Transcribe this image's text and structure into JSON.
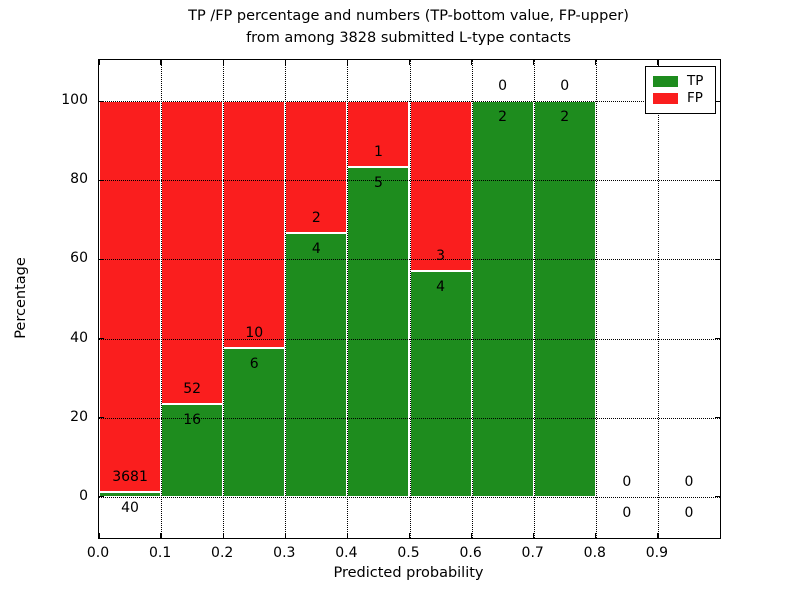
{
  "chart_data": {
    "type": "bar",
    "stacked": true,
    "title_line1": "TP /FP percentage and numbers (TP-bottom value, FP-upper)",
    "title_line2": "from among 3828 submitted L-type contacts",
    "xlabel": "Predicted probability",
    "ylabel": "Percentage",
    "x_ticks": [
      "0.0",
      "0.1",
      "0.2",
      "0.3",
      "0.4",
      "0.5",
      "0.6",
      "0.7",
      "0.8",
      "0.9"
    ],
    "y_ticks": [
      "0",
      "20",
      "40",
      "60",
      "80",
      "100"
    ],
    "xlim": [
      0.0,
      1.0
    ],
    "ylim": [
      -10.5,
      110.5
    ],
    "grid": true,
    "colors": {
      "tp": "#1e8c1e",
      "fp": "#fa1e1e",
      "bar_edge": "#ffffff",
      "axis": "#000000"
    },
    "legend": {
      "position": "upper right",
      "entries": [
        {
          "label": "TP",
          "color": "#1e8c1e"
        },
        {
          "label": "FP",
          "color": "#fa1e1e"
        }
      ]
    },
    "bins": [
      {
        "x0": 0.0,
        "x1": 0.1,
        "tp": 40,
        "fp": 3681,
        "tp_pct": 1.07,
        "fp_pct": 98.93,
        "has_bar": true
      },
      {
        "x0": 0.1,
        "x1": 0.2,
        "tp": 16,
        "fp": 52,
        "tp_pct": 23.53,
        "fp_pct": 76.47,
        "has_bar": true
      },
      {
        "x0": 0.2,
        "x1": 0.3,
        "tp": 6,
        "fp": 10,
        "tp_pct": 37.5,
        "fp_pct": 62.5,
        "has_bar": true
      },
      {
        "x0": 0.3,
        "x1": 0.4,
        "tp": 4,
        "fp": 2,
        "tp_pct": 66.67,
        "fp_pct": 33.33,
        "has_bar": true
      },
      {
        "x0": 0.4,
        "x1": 0.5,
        "tp": 5,
        "fp": 1,
        "tp_pct": 83.33,
        "fp_pct": 16.67,
        "has_bar": true
      },
      {
        "x0": 0.5,
        "x1": 0.6,
        "tp": 4,
        "fp": 3,
        "tp_pct": 57.14,
        "fp_pct": 42.86,
        "has_bar": true
      },
      {
        "x0": 0.6,
        "x1": 0.7,
        "tp": 2,
        "fp": 0,
        "tp_pct": 100,
        "fp_pct": 0,
        "has_bar": true
      },
      {
        "x0": 0.7,
        "x1": 0.8,
        "tp": 2,
        "fp": 0,
        "tp_pct": 100,
        "fp_pct": 0,
        "has_bar": true
      },
      {
        "x0": 0.8,
        "x1": 0.9,
        "tp": 0,
        "fp": 0,
        "tp_pct": 0,
        "fp_pct": 0,
        "has_bar": false
      },
      {
        "x0": 0.9,
        "x1": 1.0,
        "tp": 0,
        "fp": 0,
        "tp_pct": 0,
        "fp_pct": 0,
        "has_bar": false
      }
    ]
  }
}
